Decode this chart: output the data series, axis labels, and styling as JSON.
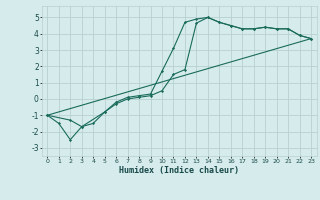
{
  "xlabel": "Humidex (Indice chaleur)",
  "ylabel": "",
  "xlim": [
    -0.5,
    23.5
  ],
  "ylim": [
    -3.5,
    5.7
  ],
  "xticks": [
    0,
    1,
    2,
    3,
    4,
    5,
    6,
    7,
    8,
    9,
    10,
    11,
    12,
    13,
    14,
    15,
    16,
    17,
    18,
    19,
    20,
    21,
    22,
    23
  ],
  "yticks": [
    -3,
    -2,
    -1,
    0,
    1,
    2,
    3,
    4,
    5
  ],
  "bg_color": "#d6ecec",
  "grid_color": "#b8d0d0",
  "line_color": "#1a6b5a",
  "line1_x": [
    0,
    1,
    2,
    3,
    4,
    5,
    6,
    7,
    8,
    9,
    10,
    11,
    12,
    13,
    14,
    15,
    16,
    17,
    18,
    19,
    20,
    21,
    22,
    23
  ],
  "line1_y": [
    -1.0,
    -1.5,
    -2.5,
    -1.7,
    -1.5,
    -0.8,
    -0.2,
    0.1,
    0.2,
    0.3,
    1.7,
    3.1,
    4.7,
    4.9,
    5.0,
    4.7,
    4.5,
    4.3,
    4.3,
    4.4,
    4.3,
    4.3,
    3.9,
    3.7
  ],
  "line2_x": [
    0,
    2,
    3,
    5,
    6,
    7,
    8,
    9,
    10,
    11,
    12,
    13,
    14,
    15,
    16,
    17,
    18,
    19,
    20,
    21,
    22,
    23
  ],
  "line2_y": [
    -1.0,
    -1.3,
    -1.7,
    -0.8,
    -0.3,
    0.0,
    0.1,
    0.2,
    0.5,
    1.5,
    1.8,
    4.65,
    5.0,
    4.7,
    4.5,
    4.3,
    4.3,
    4.4,
    4.3,
    4.3,
    3.9,
    3.7
  ],
  "line3_x": [
    0,
    23
  ],
  "line3_y": [
    -1.0,
    3.7
  ]
}
